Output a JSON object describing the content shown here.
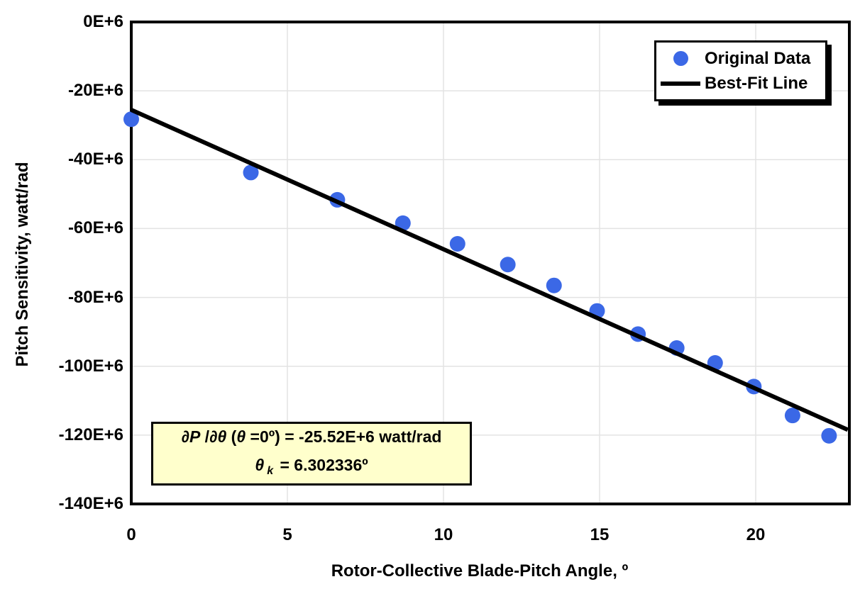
{
  "chart": {
    "x_axis_title": "Rotor-Collective Blade-Pitch Angle, º",
    "y_axis_title": "Pitch Sensitivity, watt/rad",
    "legend": {
      "original_data_label": "Original Data",
      "best_fit_label": "Best-Fit Line"
    },
    "annotation": {
      "l1_dP": "∂P",
      "l1_slash": " /",
      "l1_dtheta": "∂θ",
      "l1_paren": " (",
      "l1_theta": "θ",
      "l1_rest": " =0º) = -25.52E+6 watt/rad",
      "l2_theta": "θ",
      "l2_sub": "k",
      "l2_rest": " = 6.302336º"
    },
    "colors": {
      "dot_blue": "#3B68E6",
      "line_black": "#000000",
      "grid_gray": "#E3E3E3",
      "annotation_bg": "#FFFFCC"
    }
  },
  "chart_data": {
    "type": "scatter",
    "title": "",
    "xlabel": "Rotor-Collective Blade-Pitch Angle, º",
    "ylabel": "Pitch Sensitivity, watt/rad",
    "units_note": "y values in units of 1E+6 watt/rad",
    "xlim": [
      0,
      23
    ],
    "ylim": [
      -140,
      0
    ],
    "grid": true,
    "legend_position": "top-right",
    "x_ticks": [
      {
        "v": 0,
        "label": "0"
      },
      {
        "v": 5,
        "label": "5"
      },
      {
        "v": 10,
        "label": "10"
      },
      {
        "v": 15,
        "label": "15"
      },
      {
        "v": 20,
        "label": "20"
      }
    ],
    "y_ticks": [
      {
        "v": 0,
        "label": "0E+6"
      },
      {
        "v": -20,
        "label": "-20E+6"
      },
      {
        "v": -40,
        "label": "-40E+6"
      },
      {
        "v": -60,
        "label": "-60E+6"
      },
      {
        "v": -80,
        "label": "-80E+6"
      },
      {
        "v": -100,
        "label": "-100E+6"
      },
      {
        "v": -120,
        "label": "-120E+6"
      },
      {
        "v": -140,
        "label": "-140E+6"
      }
    ],
    "series": [
      {
        "name": "Original Data",
        "type": "scatter",
        "color": "#3B68E6",
        "points": [
          [
            0.0,
            -28.24
          ],
          [
            3.83,
            -43.73
          ],
          [
            6.6,
            -51.66
          ],
          [
            8.7,
            -58.44
          ],
          [
            10.45,
            -64.44
          ],
          [
            12.06,
            -70.46
          ],
          [
            13.54,
            -76.53
          ],
          [
            14.92,
            -83.94
          ],
          [
            16.23,
            -90.67
          ],
          [
            17.47,
            -94.71
          ],
          [
            18.7,
            -99.04
          ],
          [
            19.94,
            -105.9
          ],
          [
            21.18,
            -114.3
          ],
          [
            22.35,
            -120.2
          ]
        ]
      },
      {
        "name": "Best-Fit Line",
        "type": "line",
        "color": "#000000",
        "points": [
          [
            0,
            -25.52
          ],
          [
            22.95,
            -118.47
          ]
        ]
      }
    ],
    "fit": {
      "pitch_sensitivity_at_zero": "-25.52E+6 watt/rad",
      "theta_k": "6.302336º"
    }
  }
}
